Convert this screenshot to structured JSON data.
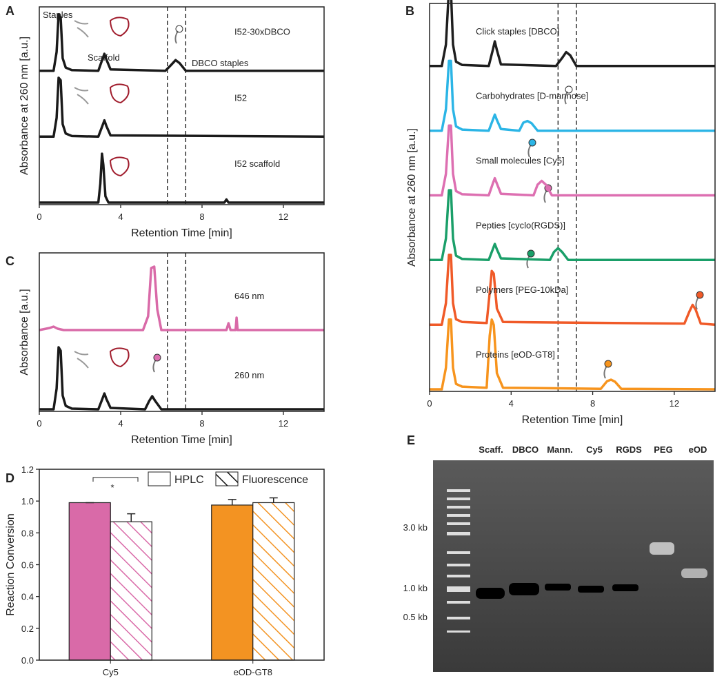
{
  "chart_data": [
    {
      "panel": "A",
      "type": "line",
      "xlabel": "Retention Time [min]",
      "ylabel": "Absorbance at 260 nm [a.u.]",
      "xlim": [
        0,
        14
      ],
      "xticks": [
        0,
        4,
        8,
        12
      ],
      "ylim": [
        0,
        1
      ],
      "vlines": [
        6.3,
        7.2
      ],
      "annotations": [
        "Staples",
        "Scaffold",
        "DBCO staples"
      ],
      "series": [
        {
          "name": "I52-30xDBCO",
          "color": "#1a1a1a",
          "x": [
            0,
            0.7,
            0.85,
            0.95,
            1.05,
            1.15,
            1.3,
            1.6,
            2.9,
            3.1,
            3.2,
            3.3,
            3.5,
            6.2,
            6.5,
            6.7,
            6.9,
            7.2,
            14
          ],
          "values": [
            0,
            0,
            0.3,
            0.9,
            0.85,
            0.2,
            0.05,
            0.01,
            0,
            0.18,
            0.27,
            0.18,
            0.02,
            0,
            0.1,
            0.17,
            0.12,
            0,
            0
          ]
        },
        {
          "name": "I52",
          "color": "#1a1a1a",
          "x": [
            0,
            0.7,
            0.85,
            0.95,
            1.05,
            1.15,
            1.3,
            1.6,
            2.9,
            3.1,
            3.2,
            3.3,
            3.5,
            14
          ],
          "values": [
            0,
            0,
            0.3,
            0.94,
            0.9,
            0.2,
            0.05,
            0.01,
            0,
            0.17,
            0.26,
            0.17,
            0.02,
            0
          ]
        },
        {
          "name": "I52 scaffold",
          "color": "#1a1a1a",
          "x": [
            0,
            2.9,
            3.0,
            3.08,
            3.15,
            3.25,
            3.4,
            9.1,
            9.2,
            9.3,
            14
          ],
          "values": [
            0,
            0,
            0.3,
            0.78,
            0.6,
            0.1,
            0,
            0,
            0.05,
            0,
            0
          ]
        }
      ]
    },
    {
      "panel": "B",
      "type": "line",
      "xlabel": "Retention Time [min]",
      "ylabel": "Absorbance at 260 nm [a.u.]",
      "xlim": [
        0,
        14
      ],
      "xticks": [
        0,
        4,
        8,
        12
      ],
      "ylim": [
        0,
        1
      ],
      "vlines": [
        6.3,
        7.2
      ],
      "annotations": [],
      "series": [
        {
          "name": "Click staples [DBCO]",
          "color": "#1e1e1e",
          "x": [
            0,
            0.6,
            0.8,
            0.95,
            1.05,
            1.15,
            1.3,
            1.6,
            2.9,
            3.1,
            3.2,
            3.3,
            3.5,
            6.2,
            6.5,
            6.7,
            6.9,
            7.2,
            14
          ],
          "values": [
            0,
            0,
            0.4,
            1.45,
            1.4,
            0.4,
            0.08,
            0.02,
            0,
            0.3,
            0.46,
            0.3,
            0.03,
            0,
            0.15,
            0.26,
            0.2,
            0,
            0
          ]
        },
        {
          "name": "Carbohydrates [D-mannose]",
          "color": "#2bb5e6",
          "x": [
            0,
            0.6,
            0.8,
            0.95,
            1.05,
            1.15,
            1.3,
            1.6,
            2.9,
            3.1,
            3.2,
            3.3,
            3.5,
            4.4,
            4.6,
            4.8,
            5.0,
            5.3,
            14
          ],
          "values": [
            0,
            0,
            0.4,
            1.3,
            1.3,
            0.4,
            0.08,
            0.02,
            0,
            0.2,
            0.3,
            0.2,
            0.03,
            0,
            0.15,
            0.18,
            0.14,
            0,
            0
          ]
        },
        {
          "name": "Small molecules [Cy5]",
          "color": "#dd6fb1",
          "x": [
            0,
            0.6,
            0.8,
            0.95,
            1.05,
            1.15,
            1.3,
            1.6,
            2.9,
            3.1,
            3.2,
            3.3,
            3.5,
            5.1,
            5.3,
            5.5,
            5.7,
            6.0,
            14
          ],
          "values": [
            0,
            0,
            0.4,
            1.3,
            1.3,
            0.4,
            0.08,
            0.02,
            0,
            0.22,
            0.32,
            0.22,
            0.03,
            0,
            0.2,
            0.27,
            0.2,
            0,
            0
          ]
        },
        {
          "name": "Pepties [cyclo(RGDS)]",
          "color": "#1a9f69",
          "x": [
            0,
            0.6,
            0.8,
            0.95,
            1.05,
            1.15,
            1.3,
            1.6,
            2.9,
            3.1,
            3.2,
            3.3,
            3.5,
            5.9,
            6.1,
            6.3,
            6.5,
            6.8,
            14
          ],
          "values": [
            0,
            0,
            0.4,
            1.3,
            1.3,
            0.4,
            0.08,
            0.02,
            0,
            0.2,
            0.3,
            0.2,
            0.03,
            0,
            0.15,
            0.22,
            0.15,
            0,
            0
          ]
        },
        {
          "name": "Polymers [PEG-10kDa]",
          "color": "#f05a28",
          "x": [
            0,
            0.6,
            0.8,
            0.95,
            1.05,
            1.15,
            1.3,
            1.6,
            2.8,
            2.95,
            3.05,
            3.15,
            3.3,
            3.6,
            12.5,
            12.75,
            12.9,
            13.05,
            13.3,
            14
          ],
          "values": [
            0,
            0,
            0.4,
            1.3,
            1.3,
            0.4,
            0.1,
            0.05,
            0.03,
            0.6,
            1.0,
            0.95,
            0.3,
            0.05,
            0.02,
            0.25,
            0.37,
            0.28,
            0.02,
            0
          ]
        },
        {
          "name": "Proteins [eOD-GT8]",
          "color": "#f7941d",
          "x": [
            0,
            0.6,
            0.8,
            0.95,
            1.05,
            1.15,
            1.3,
            1.6,
            2.8,
            2.95,
            3.05,
            3.15,
            3.3,
            3.6,
            8.4,
            8.7,
            8.9,
            9.1,
            9.4,
            14
          ],
          "values": [
            0,
            0,
            0.4,
            1.3,
            1.3,
            0.4,
            0.1,
            0.05,
            0.03,
            1.0,
            1.3,
            1.2,
            0.3,
            0.03,
            0.01,
            0.15,
            0.18,
            0.14,
            0.01,
            0
          ]
        }
      ]
    },
    {
      "panel": "C",
      "type": "line",
      "xlabel": "Retention Time [min]",
      "ylabel": "Absorbance [a.u.]",
      "xlim": [
        0,
        14
      ],
      "xticks": [
        0,
        4,
        8,
        12
      ],
      "ylim": [
        0,
        1
      ],
      "vlines": [
        6.3,
        7.2
      ],
      "annotations": [],
      "series": [
        {
          "name": "646 nm",
          "color": "#d96aa8",
          "x": [
            0,
            0.5,
            0.7,
            0.9,
            1.2,
            5.1,
            5.35,
            5.5,
            5.65,
            5.8,
            6.0,
            9.2,
            9.3,
            9.4,
            9.65,
            9.7,
            9.75,
            14
          ],
          "values": [
            0,
            0.03,
            0.05,
            0.02,
            0,
            0,
            0.2,
            0.9,
            0.92,
            0.3,
            0,
            0,
            0.1,
            0,
            0,
            0.18,
            0,
            0
          ]
        },
        {
          "name": "260 nm",
          "color": "#1a1a1a",
          "x": [
            0,
            0.7,
            0.85,
            0.95,
            1.05,
            1.15,
            1.3,
            1.6,
            2.9,
            3.1,
            3.2,
            3.3,
            3.5,
            5.2,
            5.4,
            5.55,
            5.7,
            6.0,
            14
          ],
          "values": [
            0,
            0,
            0.3,
            0.9,
            0.85,
            0.2,
            0.05,
            0.01,
            0,
            0.15,
            0.23,
            0.15,
            0.02,
            0,
            0.12,
            0.19,
            0.12,
            0,
            0
          ]
        }
      ]
    },
    {
      "panel": "D",
      "type": "bar",
      "ylabel": "Reaction Conversion",
      "categories": [
        "Cy5",
        "eOD-GT8"
      ],
      "colors": [
        "#d96aa8",
        "#f39322"
      ],
      "ylim": [
        0,
        1.2
      ],
      "yticks": [
        {
          "value": 0,
          "label": "0.0"
        },
        {
          "value": 0.2,
          "label": "0.2"
        },
        {
          "value": 0.4,
          "label": "0.4"
        },
        {
          "value": 0.6,
          "label": "0.6"
        },
        {
          "value": 0.8,
          "label": "0.8"
        },
        {
          "value": 1,
          "label": "1.0"
        },
        {
          "value": 1.2,
          "label": "1.2"
        }
      ],
      "annotations": [
        "*"
      ],
      "series": [
        {
          "name": "HPLC",
          "pattern": "solid",
          "values": [
            0.99,
            0.975
          ],
          "errors": [
            0,
            0.035
          ]
        },
        {
          "name": "Fluorescence",
          "pattern": "hatch",
          "values": [
            0.87,
            0.99
          ],
          "errors": [
            0.05,
            0.03
          ]
        }
      ]
    }
  ],
  "gel": {
    "panel": "E",
    "lanes": [
      {
        "label": "Scaff.",
        "color": "#111111"
      },
      {
        "label": "DBCO",
        "color": "#111111"
      },
      {
        "label": "Mann.",
        "color": "#2bb5e6"
      },
      {
        "label": "Cy5",
        "color": "#dd6fb1"
      },
      {
        "label": "RGDS",
        "color": "#1a9f69"
      },
      {
        "label": "PEG",
        "color": "#f05a28"
      },
      {
        "label": "eOD",
        "color": "#f7941d"
      }
    ],
    "markers": [
      "3.0 kb",
      "1.0 kb",
      "0.5 kb"
    ]
  }
}
